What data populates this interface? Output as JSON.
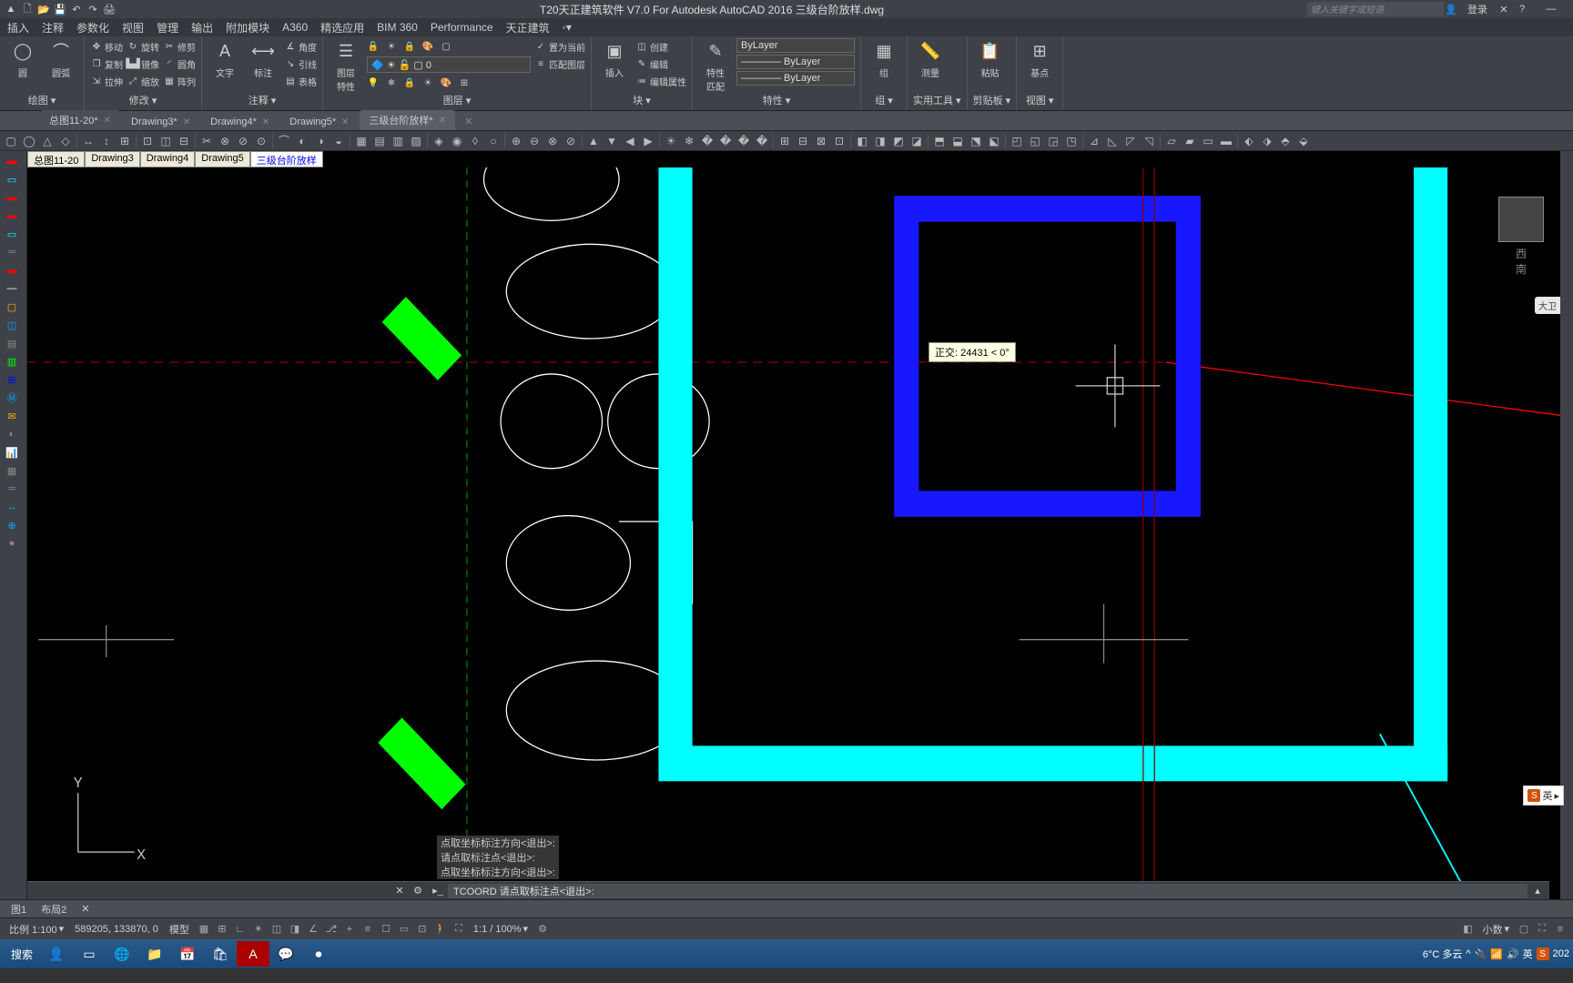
{
  "title": "T20天正建筑软件 V7.0 For Autodesk AutoCAD 2016    三级台阶放样.dwg",
  "search_placeholder": "键入关键字或短语",
  "login_label": "登录",
  "menus": [
    "插入",
    "注释",
    "参数化",
    "视图",
    "管理",
    "输出",
    "附加模块",
    "A360",
    "精选应用",
    "BIM 360",
    "Performance",
    "天正建筑"
  ],
  "ribbon": {
    "panels": [
      {
        "title": "绘图",
        "big": [
          {
            "label": "圆",
            "icon": "◯"
          },
          {
            "label": "圆弧",
            "icon": "⌒"
          }
        ]
      },
      {
        "title": "修改",
        "small_cols": [
          [
            {
              "label": "移动",
              "icon": "✥"
            },
            {
              "label": "复制",
              "icon": "❐"
            },
            {
              "label": "拉伸",
              "icon": "⇲"
            }
          ],
          [
            {
              "label": "旋转",
              "icon": "↻"
            },
            {
              "label": "镜像",
              "icon": "▙▟"
            },
            {
              "label": "缩放",
              "icon": "⤢"
            }
          ],
          [
            {
              "label": "修剪",
              "icon": "✂"
            },
            {
              "label": "圆角",
              "icon": "◜"
            },
            {
              "label": "阵列",
              "icon": "▦"
            }
          ]
        ]
      },
      {
        "title": "注释",
        "big": [
          {
            "label": "文字",
            "icon": "A"
          },
          {
            "label": "标注",
            "icon": "⟷"
          }
        ],
        "small_cols": [
          [
            {
              "label": "角度",
              "icon": "∡"
            },
            {
              "label": "引线",
              "icon": "↘"
            },
            {
              "label": "表格",
              "icon": "▤"
            }
          ]
        ]
      },
      {
        "title": "图层",
        "big": [
          {
            "label": "图层\n特性",
            "icon": "☰"
          }
        ],
        "combo": "0",
        "small_cols": [
          [
            {
              "label": "置为当前",
              "icon": "✓"
            },
            {
              "label": "匹配图层",
              "icon": "≡"
            }
          ]
        ]
      },
      {
        "title": "块",
        "big": [
          {
            "label": "插入",
            "icon": "▣"
          }
        ],
        "small_cols": [
          [
            {
              "label": "创建",
              "icon": "◫"
            },
            {
              "label": "编辑",
              "icon": "✎"
            },
            {
              "label": "编辑属性",
              "icon": "≔"
            }
          ]
        ]
      },
      {
        "title": "特性",
        "big": [
          {
            "label": "特性\n匹配",
            "icon": "✎"
          }
        ],
        "props": [
          "ByLayer",
          "———— ByLayer",
          "———— ByLayer"
        ]
      },
      {
        "title": "组",
        "big": [
          {
            "label": "组",
            "icon": "▦"
          }
        ]
      },
      {
        "title": "实用工具",
        "big": [
          {
            "label": "测量",
            "icon": "📏"
          }
        ]
      },
      {
        "title": "剪贴板",
        "big": [
          {
            "label": "粘贴",
            "icon": "📋"
          }
        ]
      },
      {
        "title": "视图",
        "big": [
          {
            "label": "基点",
            "icon": "⊞"
          }
        ]
      }
    ]
  },
  "doc_tabs": [
    {
      "label": "总图11-20*",
      "active": false
    },
    {
      "label": "Drawing3*",
      "active": false
    },
    {
      "label": "Drawing4*",
      "active": false
    },
    {
      "label": "Drawing5*",
      "active": false
    },
    {
      "label": "三级台阶放样*",
      "active": true
    }
  ],
  "model_tabs": [
    "总图11-20",
    "Drawing3",
    "Drawing4",
    "Drawing5",
    "三级台阶放样"
  ],
  "active_model_tab": 4,
  "tooltip_text": "正交: 24431 < 0°",
  "cmd_history": [
    "点取坐标标注方向<退出>:",
    "请点取标注点<退出>:",
    "点取坐标标注方向<退出>:"
  ],
  "cmd_prompt": "TCOORD 请点取标注点<退出>:",
  "layout_tabs": [
    "图1",
    "布局2"
  ],
  "status": {
    "scale_label": "比例 1:100",
    "coords": "589205, 133870, 0",
    "model_label": "模型",
    "zoom": "1:1 / 100%",
    "decimal": "小数"
  },
  "viewcube": {
    "w": "西",
    "s": "南"
  },
  "nav_pill": "大卫",
  "ime": {
    "icon": "S",
    "label": "英"
  },
  "taskbar": {
    "search": "搜索",
    "weather": "6°C 多云",
    "lang": "英",
    "time_suffix": "202"
  },
  "colors": {
    "cyan": "#00ffff",
    "blue": "#1818ff",
    "green": "#00ff00",
    "darkred": "#8b0000",
    "red": "#ff0000",
    "white": "#ffffff",
    "gray": "#888888"
  },
  "ucs": {
    "x": "X",
    "y": "Y"
  }
}
